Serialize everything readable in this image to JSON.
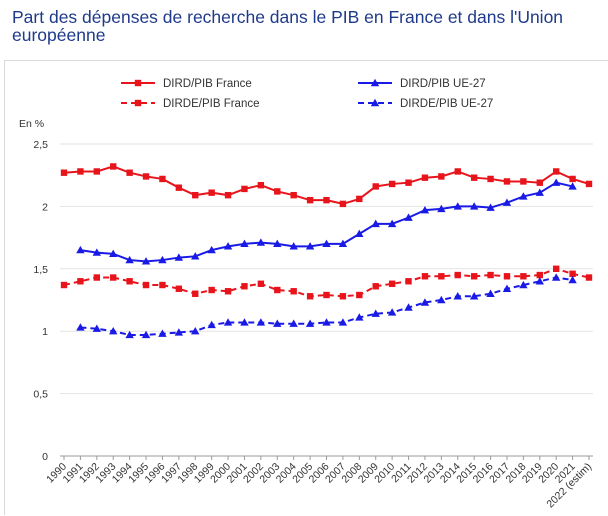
{
  "title": "Part des dépenses de recherche dans le PIB en France et dans l'Union européenne",
  "chart_data": {
    "type": "line",
    "title": "Part des dépenses de recherche dans le PIB en France et dans l'Union européenne",
    "ylabel": "En %",
    "xlabel": "",
    "ylim": [
      0,
      2.5
    ],
    "yticks": [
      "0",
      "0,5",
      "1",
      "1,5",
      "2",
      "2,5"
    ],
    "ytick_values": [
      0,
      0.5,
      1,
      1.5,
      2,
      2.5
    ],
    "grid": "horizontal",
    "legend_position": "top",
    "categories": [
      "1990",
      "1991",
      "1992",
      "1993",
      "1994",
      "1995",
      "1996",
      "1997",
      "1998",
      "1999",
      "2000",
      "2001",
      "2002",
      "2003",
      "2004",
      "2005",
      "2006",
      "2007",
      "2008",
      "2009",
      "2010",
      "2011",
      "2012",
      "2013",
      "2014",
      "2015",
      "2016",
      "2017",
      "2018",
      "2019",
      "2020",
      "2021",
      "2022 (estim)"
    ],
    "series": [
      {
        "name": "DIRD/PIB France",
        "color": "#e8141c",
        "dash": false,
        "marker": "square",
        "values": [
          2.27,
          2.28,
          2.28,
          2.32,
          2.27,
          2.24,
          2.22,
          2.15,
          2.09,
          2.11,
          2.09,
          2.14,
          2.17,
          2.12,
          2.09,
          2.05,
          2.05,
          2.02,
          2.06,
          2.16,
          2.18,
          2.19,
          2.23,
          2.24,
          2.28,
          2.23,
          2.22,
          2.2,
          2.2,
          2.19,
          2.28,
          2.22,
          2.18
        ]
      },
      {
        "name": "DIRD/PIB UE-27",
        "color": "#1a1ae6",
        "dash": false,
        "marker": "triangle",
        "values": [
          null,
          1.65,
          1.63,
          1.62,
          1.57,
          1.56,
          1.57,
          1.59,
          1.6,
          1.65,
          1.68,
          1.7,
          1.71,
          1.7,
          1.68,
          1.68,
          1.7,
          1.7,
          1.78,
          1.86,
          1.86,
          1.91,
          1.97,
          1.98,
          2.0,
          2.0,
          1.99,
          2.03,
          2.08,
          2.11,
          2.19,
          2.16,
          null
        ]
      },
      {
        "name": "DIRDE/PIB France",
        "color": "#e8141c",
        "dash": true,
        "marker": "square",
        "values": [
          1.37,
          1.4,
          1.43,
          1.43,
          1.4,
          1.37,
          1.37,
          1.34,
          1.3,
          1.33,
          1.32,
          1.36,
          1.38,
          1.33,
          1.32,
          1.28,
          1.29,
          1.28,
          1.29,
          1.36,
          1.38,
          1.4,
          1.44,
          1.44,
          1.45,
          1.44,
          1.45,
          1.44,
          1.44,
          1.45,
          1.5,
          1.46,
          1.43
        ]
      },
      {
        "name": "DIRDE/PIB UE-27",
        "color": "#1a1ae6",
        "dash": true,
        "marker": "triangle",
        "values": [
          null,
          1.03,
          1.02,
          1.0,
          0.97,
          0.97,
          0.98,
          0.99,
          1.0,
          1.05,
          1.07,
          1.07,
          1.07,
          1.06,
          1.06,
          1.06,
          1.07,
          1.07,
          1.11,
          1.14,
          1.15,
          1.19,
          1.23,
          1.25,
          1.28,
          1.28,
          1.3,
          1.34,
          1.37,
          1.4,
          1.43,
          1.41,
          null
        ]
      }
    ]
  }
}
